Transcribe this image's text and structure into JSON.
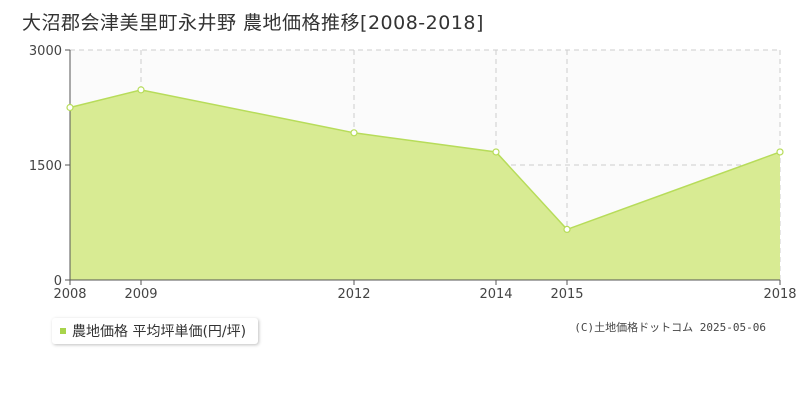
{
  "chart_data": {
    "type": "area",
    "title": "大沼郡会津美里町永井野 農地価格推移[2008-2018]",
    "x": [
      "2008",
      "2009",
      "2012",
      "2014",
      "2015",
      "2018"
    ],
    "series": [
      {
        "name": "農地価格 平均坪単価(円/坪)",
        "values": [
          2250,
          2480,
          1920,
          1670,
          660,
          1670
        ]
      }
    ],
    "ylim": [
      0,
      3000
    ],
    "yticks": [
      "0",
      "1500",
      "3000"
    ],
    "grid": true,
    "legend": "bottom-left",
    "colors": {
      "fill": "#d8eb93",
      "line": "#b7dc5a",
      "point_fill": "#ffffff",
      "swatch": "#a8d44b"
    }
  },
  "credit": "(C)土地価格ドットコム 2025-05-06"
}
